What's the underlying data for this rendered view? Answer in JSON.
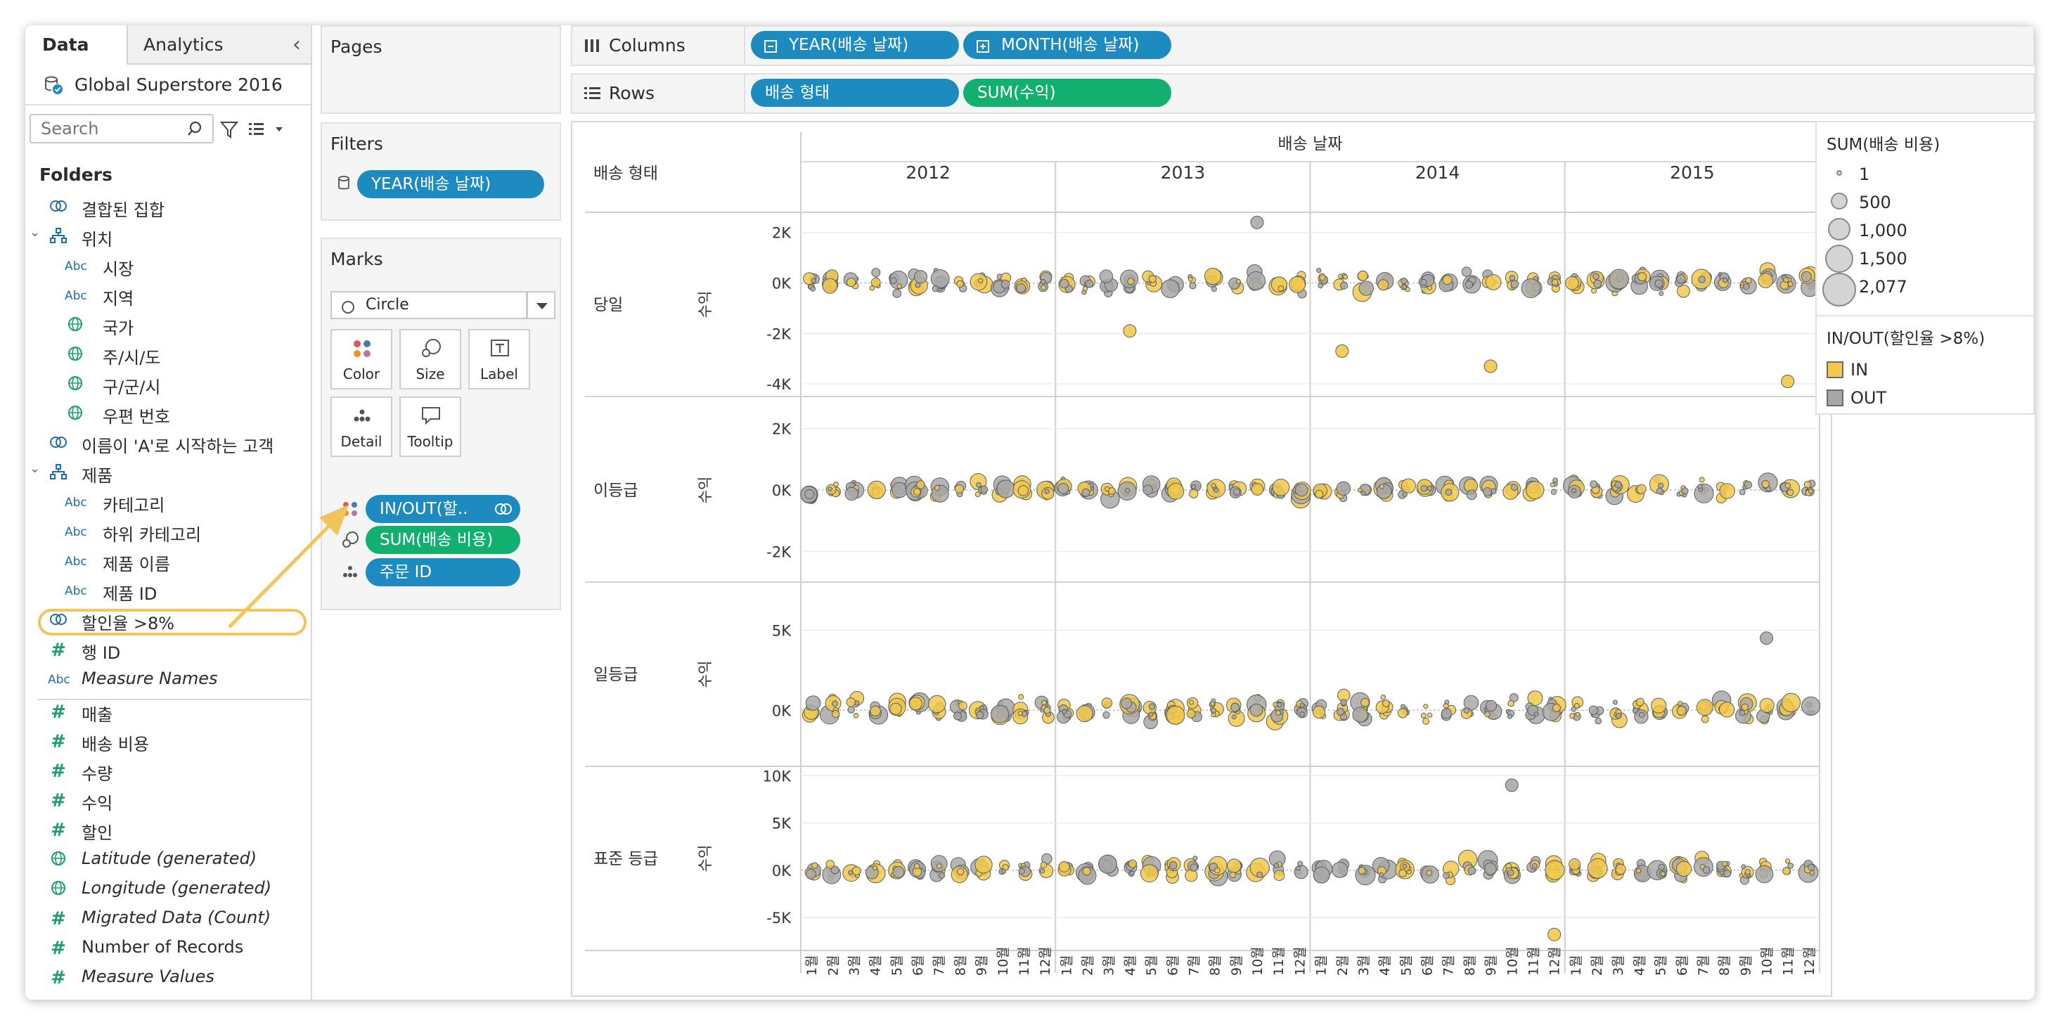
{
  "data_pane": {
    "tab_data": "Data",
    "tab_analytics": "Analytics",
    "datasource": "Global Superstore 2016",
    "search_placeholder": "Search",
    "folders_title": "Folders",
    "fields": [
      {
        "label": "결합된 집합",
        "icon": "set-icon",
        "indent": 1,
        "italic": false
      },
      {
        "label": "위치",
        "icon": "hierarchy-icon",
        "indent": 1,
        "italic": false,
        "expanded": true
      },
      {
        "label": "시장",
        "icon": "abc",
        "indent": 2,
        "italic": false
      },
      {
        "label": "지역",
        "icon": "abc",
        "indent": 2,
        "italic": false
      },
      {
        "label": "국가",
        "icon": "globe-icon",
        "indent": 2,
        "italic": false
      },
      {
        "label": "주/시/도",
        "icon": "globe-icon",
        "indent": 2,
        "italic": false
      },
      {
        "label": "구/군/시",
        "icon": "globe-icon",
        "indent": 2,
        "italic": false
      },
      {
        "label": "우편 번호",
        "icon": "globe-icon",
        "indent": 2,
        "italic": false
      },
      {
        "label": "이름이 'A'로 시작하는 고객",
        "icon": "set-icon",
        "indent": 1,
        "italic": false
      },
      {
        "label": "제품",
        "icon": "hierarchy-icon",
        "indent": 1,
        "italic": false,
        "expanded": true
      },
      {
        "label": "카테고리",
        "icon": "abc",
        "indent": 2,
        "italic": false
      },
      {
        "label": "하위 카테고리",
        "icon": "abc",
        "indent": 2,
        "italic": false
      },
      {
        "label": "제품 이름",
        "icon": "abc",
        "indent": 2,
        "italic": false
      },
      {
        "label": "제품 ID",
        "icon": "abc",
        "indent": 2,
        "italic": false
      },
      {
        "label": "할인율 >8%",
        "icon": "set-icon",
        "indent": 1,
        "italic": false,
        "highlighted": true
      },
      {
        "label": "행 ID",
        "icon": "hash",
        "indent": 1,
        "italic": false
      },
      {
        "label": "Measure Names",
        "icon": "abc",
        "indent": 1,
        "italic": true
      },
      {
        "label": "매출",
        "icon": "hash",
        "indent": 1,
        "italic": false
      },
      {
        "label": "배송 비용",
        "icon": "hash",
        "indent": 1,
        "italic": false
      },
      {
        "label": "수량",
        "icon": "hash",
        "indent": 1,
        "italic": false
      },
      {
        "label": "수익",
        "icon": "hash",
        "indent": 1,
        "italic": false
      },
      {
        "label": "할인",
        "icon": "hash",
        "indent": 1,
        "italic": false
      },
      {
        "label": "Latitude (generated)",
        "icon": "globe-icon",
        "indent": 1,
        "italic": true
      },
      {
        "label": "Longitude (generated)",
        "icon": "globe-icon",
        "indent": 1,
        "italic": true
      },
      {
        "label": "Migrated Data (Count)",
        "icon": "hash",
        "indent": 1,
        "italic": true
      },
      {
        "label": "Number of Records",
        "icon": "hash-calc",
        "indent": 1,
        "italic": false
      },
      {
        "label": "Measure Values",
        "icon": "hash",
        "indent": 1,
        "italic": true
      }
    ]
  },
  "pages_card": {
    "title": "Pages"
  },
  "filters_card": {
    "title": "Filters",
    "pill": "YEAR(배송 날짜)"
  },
  "marks_card": {
    "title": "Marks",
    "mark_type": "Circle",
    "buttons": {
      "color": "Color",
      "size": "Size",
      "label": "Label",
      "detail": "Detail",
      "tooltip": "Tooltip"
    },
    "pills": [
      {
        "label": "IN/OUT(할..",
        "kind": "color",
        "style": "blue"
      },
      {
        "label": "SUM(배송 비용)",
        "kind": "size",
        "style": "green"
      },
      {
        "label": "주문 ID",
        "kind": "detail",
        "style": "blue"
      }
    ]
  },
  "columns_shelf": {
    "label": "Columns",
    "pills": [
      "YEAR(배송 날짜)",
      "MONTH(배송 날짜)"
    ]
  },
  "rows_shelf": {
    "label": "Rows",
    "pills": [
      "배송 형태",
      "SUM(수익)"
    ]
  },
  "viz": {
    "column_header": "배송 날짜",
    "row_header": "배송 형태",
    "years": [
      "2012",
      "2013",
      "2014",
      "2015"
    ],
    "months": [
      "1월",
      "2월",
      "3월",
      "4월",
      "5월",
      "6월",
      "7월",
      "8월",
      "9월",
      "10월",
      "11월",
      "12월"
    ],
    "axis_title": "수익",
    "colors": {
      "in": "#f2c94c",
      "out": "#a8a8a8",
      "grid": "#e8e8e8",
      "zero_line": "#bdbdbd"
    }
  },
  "chart_data": {
    "type": "scatter",
    "x_dimension": "배송 날짜 (YEAR, MONTH)",
    "y_measure": "수익",
    "panes": [
      {
        "row": "당일",
        "ylim": [
          -4500,
          2800
        ],
        "ticks": [
          2000,
          0,
          -2000,
          -4000
        ],
        "tick_labels": [
          "2K",
          "0K",
          "-2K",
          "-4K"
        ]
      },
      {
        "row": "이등급",
        "ylim": [
          -3000,
          3000
        ],
        "ticks": [
          2000,
          0,
          -2000
        ],
        "tick_labels": [
          "2K",
          "0K",
          "-2K"
        ]
      },
      {
        "row": "일등급",
        "ylim": [
          -3500,
          8000
        ],
        "ticks": [
          5000,
          0
        ],
        "tick_labels": [
          "5K",
          "0K"
        ]
      },
      {
        "row": "표준 등급",
        "ylim": [
          -8500,
          11000
        ],
        "ticks": [
          10000,
          5000,
          0,
          -5000
        ],
        "tick_labels": [
          "10K",
          "5K",
          "0K",
          "-5K"
        ]
      }
    ],
    "color_legend": {
      "title": "IN/OUT(할인율 >8%)",
      "items": [
        {
          "label": "IN",
          "color": "#f2c94c"
        },
        {
          "label": "OUT",
          "color": "#a8a8a8"
        }
      ]
    },
    "size_legend": {
      "title": "SUM(배송 비용)",
      "items": [
        "1",
        "500",
        "1,000",
        "1,500",
        "2,077"
      ],
      "values": [
        1,
        500,
        1000,
        1500,
        2077
      ]
    },
    "outliers": [
      {
        "row": "당일",
        "year": "2013",
        "month": 4,
        "value": -1900,
        "group": "IN"
      },
      {
        "row": "당일",
        "year": "2014",
        "month": 2,
        "value": -2700,
        "group": "IN"
      },
      {
        "row": "당일",
        "year": "2014",
        "month": 9,
        "value": -3300,
        "group": "IN"
      },
      {
        "row": "당일",
        "year": "2015",
        "month": 11,
        "value": -3900,
        "group": "IN"
      },
      {
        "row": "당일",
        "year": "2013",
        "month": 10,
        "value": 2400,
        "group": "OUT"
      },
      {
        "row": "일등급",
        "year": "2015",
        "month": 10,
        "value": 4500,
        "group": "OUT"
      },
      {
        "row": "표준 등급",
        "year": "2014",
        "month": 10,
        "value": 9000,
        "group": "OUT"
      },
      {
        "row": "표준 등급",
        "year": "2014",
        "month": 12,
        "value": -6800,
        "group": "IN"
      }
    ]
  }
}
